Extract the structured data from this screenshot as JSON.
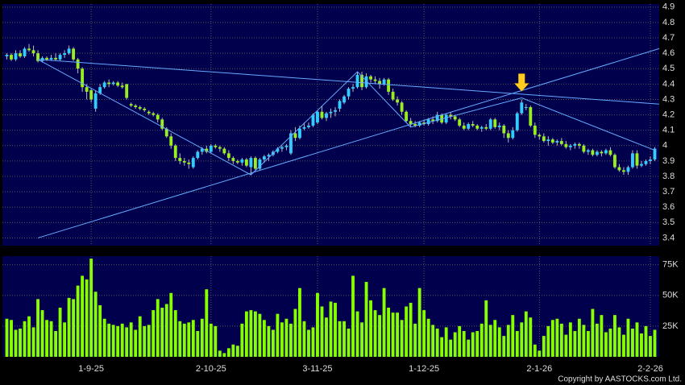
{
  "chart_data": {
    "type": "candlestick",
    "up_color": "#33ccff",
    "down_color": "#99ee22",
    "volume_color": "#88ff00",
    "background": "#00004d",
    "trendline_color": "#66aaff",
    "grid": true,
    "xlim": [
      -1,
      147
    ],
    "xticks": [
      {
        "value": 19,
        "label": "1-9-25"
      },
      {
        "value": 46,
        "label": "2-10-25"
      },
      {
        "value": 70,
        "label": "3-11-25"
      },
      {
        "value": 94,
        "label": "1-12-25"
      },
      {
        "value": 120,
        "label": "2-1-26"
      },
      {
        "value": 145,
        "label": "2-2-26"
      }
    ],
    "ylim": [
      3.35,
      4.92
    ],
    "yticks": [
      3.4,
      3.5,
      3.6,
      3.7,
      3.8,
      3.9,
      4,
      4.1,
      4.2,
      4.3,
      4.4,
      4.5,
      4.6,
      4.7,
      4.8,
      4.9
    ],
    "y2lim": [
      0,
      82000
    ],
    "y2ticks": [
      {
        "value": 25000,
        "label": "25K"
      },
      {
        "value": 50000,
        "label": "50K"
      },
      {
        "value": 75000,
        "label": "75K"
      }
    ],
    "trendlines": [
      {
        "x": [
          7,
          55,
          79,
          91,
          116,
          146
        ],
        "y": [
          4.56,
          3.81,
          4.48,
          4.12,
          4.31,
          3.97
        ]
      },
      {
        "x": [
          7,
          147
        ],
        "y": [
          4.56,
          4.27
        ]
      },
      {
        "x": [
          7,
          147
        ],
        "y": [
          3.4,
          4.63
        ]
      }
    ],
    "candles": [
      [
        4.58,
        4.6,
        4.56,
        4.59,
        31000
      ],
      [
        4.59,
        4.6,
        4.55,
        4.56,
        30000
      ],
      [
        4.56,
        4.62,
        4.55,
        4.6,
        22000
      ],
      [
        4.6,
        4.62,
        4.57,
        4.58,
        23000
      ],
      [
        4.58,
        4.64,
        4.57,
        4.63,
        29000
      ],
      [
        4.63,
        4.66,
        4.61,
        4.62,
        33000
      ],
      [
        4.62,
        4.65,
        4.58,
        4.6,
        24000
      ],
      [
        4.6,
        4.62,
        4.54,
        4.55,
        47000
      ],
      [
        4.55,
        4.58,
        4.54,
        4.57,
        38000
      ],
      [
        4.57,
        4.58,
        4.55,
        4.56,
        30000
      ],
      [
        4.56,
        4.59,
        4.55,
        4.57,
        29000
      ],
      [
        4.57,
        4.6,
        4.55,
        4.56,
        21000
      ],
      [
        4.56,
        4.6,
        4.55,
        4.59,
        40000
      ],
      [
        4.59,
        4.62,
        4.57,
        4.6,
        28000
      ],
      [
        4.6,
        4.65,
        4.59,
        4.63,
        48000
      ],
      [
        4.63,
        4.64,
        4.55,
        4.56,
        47000
      ],
      [
        4.56,
        4.57,
        4.47,
        4.5,
        58000
      ],
      [
        4.5,
        4.51,
        4.35,
        4.38,
        66000
      ],
      [
        4.38,
        4.4,
        4.3,
        4.35,
        63000
      ],
      [
        4.36,
        4.37,
        4.28,
        4.3,
        80000
      ],
      [
        4.24,
        4.36,
        4.22,
        4.34,
        53000
      ],
      [
        4.34,
        4.4,
        4.33,
        4.38,
        42000
      ],
      [
        4.38,
        4.42,
        4.37,
        4.41,
        31000
      ],
      [
        4.41,
        4.43,
        4.38,
        4.4,
        27000
      ],
      [
        4.4,
        4.42,
        4.39,
        4.41,
        26000
      ],
      [
        4.41,
        4.42,
        4.38,
        4.39,
        25000
      ],
      [
        4.39,
        4.41,
        4.37,
        4.38,
        27000
      ],
      [
        4.4,
        4.4,
        4.3,
        4.31,
        24000
      ],
      [
        4.27,
        4.28,
        4.25,
        4.26,
        28000
      ],
      [
        4.26,
        4.27,
        4.24,
        4.25,
        22000
      ],
      [
        4.25,
        4.26,
        4.23,
        4.24,
        33000
      ],
      [
        4.24,
        4.25,
        4.22,
        4.23,
        25000
      ],
      [
        4.22,
        4.23,
        4.2,
        4.21,
        26000
      ],
      [
        4.21,
        4.22,
        4.19,
        4.2,
        38000
      ],
      [
        4.2,
        4.21,
        4.15,
        4.17,
        47000
      ],
      [
        4.17,
        4.18,
        4.1,
        4.11,
        40000
      ],
      [
        4.11,
        4.12,
        4.05,
        4.06,
        43000
      ],
      [
        4.06,
        4.08,
        3.98,
        4.0,
        52000
      ],
      [
        4.0,
        4.01,
        3.9,
        3.92,
        38000
      ],
      [
        3.92,
        3.95,
        3.88,
        3.9,
        29000
      ],
      [
        3.9,
        3.92,
        3.87,
        3.89,
        27000
      ],
      [
        3.89,
        3.91,
        3.85,
        3.88,
        28000
      ],
      [
        3.86,
        3.93,
        3.85,
        3.92,
        30000
      ],
      [
        3.92,
        3.97,
        3.91,
        3.96,
        21000
      ],
      [
        3.96,
        3.99,
        3.94,
        3.98,
        31000
      ],
      [
        3.98,
        4.0,
        3.95,
        3.96,
        55000
      ],
      [
        3.96,
        4.01,
        3.95,
        4.0,
        27000
      ],
      [
        4.0,
        4.01,
        3.98,
        3.99,
        25000
      ],
      [
        3.99,
        4.0,
        3.96,
        3.98,
        5000
      ],
      [
        3.98,
        3.99,
        3.94,
        3.95,
        3000
      ],
      [
        3.95,
        3.97,
        3.9,
        3.92,
        7000
      ],
      [
        3.92,
        3.93,
        3.88,
        3.9,
        10000
      ],
      [
        3.9,
        3.91,
        3.88,
        3.89,
        9000
      ],
      [
        3.89,
        3.92,
        3.87,
        3.91,
        27000
      ],
      [
        3.91,
        3.92,
        3.86,
        3.87,
        37000
      ],
      [
        3.86,
        3.93,
        3.81,
        3.92,
        38000
      ],
      [
        3.92,
        3.93,
        3.84,
        3.85,
        37000
      ],
      [
        3.85,
        3.92,
        3.84,
        3.91,
        35000
      ],
      [
        3.91,
        3.94,
        3.89,
        3.93,
        30000
      ],
      [
        3.93,
        3.95,
        3.9,
        3.94,
        25000
      ],
      [
        3.94,
        3.97,
        3.93,
        3.96,
        22000
      ],
      [
        3.96,
        3.99,
        3.95,
        3.98,
        35000
      ],
      [
        3.98,
        4.0,
        3.96,
        3.99,
        28000
      ],
      [
        3.99,
        4.01,
        3.97,
        4.0,
        31000
      ],
      [
        3.95,
        4.1,
        3.94,
        4.08,
        27000
      ],
      [
        4.08,
        4.12,
        4.03,
        4.05,
        39000
      ],
      [
        4.05,
        4.13,
        4.04,
        4.11,
        56000
      ],
      [
        4.11,
        4.15,
        4.1,
        4.12,
        29000
      ],
      [
        4.12,
        4.15,
        4.11,
        4.13,
        22000
      ],
      [
        4.13,
        4.21,
        4.12,
        4.2,
        24000
      ],
      [
        4.15,
        4.23,
        4.14,
        4.22,
        52000
      ],
      [
        4.22,
        4.26,
        4.17,
        4.18,
        41000
      ],
      [
        4.18,
        4.22,
        4.16,
        4.21,
        32000
      ],
      [
        4.21,
        4.24,
        4.18,
        4.22,
        45000
      ],
      [
        4.22,
        4.25,
        4.19,
        4.23,
        44000
      ],
      [
        4.24,
        4.3,
        4.22,
        4.29,
        29000
      ],
      [
        4.28,
        4.33,
        4.27,
        4.32,
        29000
      ],
      [
        4.32,
        4.38,
        4.3,
        4.37,
        23000
      ],
      [
        4.37,
        4.4,
        4.35,
        4.38,
        66000
      ],
      [
        4.38,
        4.48,
        4.37,
        4.46,
        37000
      ],
      [
        4.46,
        4.48,
        4.36,
        4.38,
        28000
      ],
      [
        4.38,
        4.47,
        4.37,
        4.45,
        61000
      ],
      [
        4.45,
        4.46,
        4.41,
        4.43,
        46000
      ],
      [
        4.43,
        4.45,
        4.4,
        4.42,
        38000
      ],
      [
        4.42,
        4.44,
        4.37,
        4.4,
        34000
      ],
      [
        4.4,
        4.44,
        4.39,
        4.43,
        56000
      ],
      [
        4.43,
        4.44,
        4.33,
        4.35,
        40000
      ],
      [
        4.35,
        4.37,
        4.29,
        4.3,
        36000
      ],
      [
        4.3,
        4.32,
        4.26,
        4.28,
        36000
      ],
      [
        4.28,
        4.29,
        4.2,
        4.22,
        30000
      ],
      [
        4.22,
        4.23,
        4.15,
        4.16,
        41000
      ],
      [
        4.16,
        4.18,
        4.12,
        4.14,
        44000
      ],
      [
        4.14,
        4.16,
        4.12,
        4.13,
        27000
      ],
      [
        4.13,
        4.16,
        4.12,
        4.15,
        56000
      ],
      [
        4.15,
        4.17,
        4.13,
        4.14,
        38000
      ],
      [
        4.14,
        4.18,
        4.13,
        4.17,
        31000
      ],
      [
        4.17,
        4.19,
        4.14,
        4.16,
        26000
      ],
      [
        4.16,
        4.22,
        4.15,
        4.2,
        23000
      ],
      [
        4.2,
        4.21,
        4.14,
        4.15,
        16000
      ],
      [
        4.15,
        4.21,
        4.14,
        4.2,
        24000
      ],
      [
        4.2,
        4.22,
        4.17,
        4.19,
        14000
      ],
      [
        4.19,
        4.2,
        4.16,
        4.17,
        20000
      ],
      [
        4.17,
        4.18,
        4.12,
        4.13,
        25000
      ],
      [
        4.13,
        4.15,
        4.1,
        4.11,
        21000
      ],
      [
        4.11,
        4.15,
        4.1,
        4.14,
        14000
      ],
      [
        4.14,
        4.16,
        4.12,
        4.13,
        20000
      ],
      [
        4.13,
        4.14,
        4.1,
        4.11,
        21000
      ],
      [
        4.11,
        4.13,
        4.09,
        4.12,
        27000
      ],
      [
        4.12,
        4.14,
        4.1,
        4.11,
        46000
      ],
      [
        4.11,
        4.18,
        4.1,
        4.17,
        26000
      ],
      [
        4.17,
        4.18,
        4.11,
        4.12,
        30000
      ],
      [
        4.12,
        4.15,
        4.1,
        4.13,
        24000
      ],
      [
        4.13,
        4.14,
        4.05,
        4.08,
        17000
      ],
      [
        4.08,
        4.1,
        4.02,
        4.05,
        26000
      ],
      [
        4.05,
        4.12,
        4.04,
        4.1,
        34000
      ],
      [
        4.1,
        4.22,
        4.09,
        4.21,
        21000
      ],
      [
        4.21,
        4.3,
        4.2,
        4.28,
        28000
      ],
      [
        4.25,
        4.27,
        4.23,
        4.25,
        37000
      ],
      [
        4.25,
        4.26,
        4.12,
        4.13,
        32000
      ],
      [
        4.13,
        4.15,
        4.05,
        4.07,
        10000
      ],
      [
        4.07,
        4.08,
        4.04,
        4.06,
        5000
      ],
      [
        4.06,
        4.08,
        4.02,
        4.03,
        17000
      ],
      [
        4.03,
        4.06,
        4.0,
        4.04,
        25000
      ],
      [
        4.04,
        4.05,
        4.01,
        4.02,
        30000
      ],
      [
        4.02,
        4.04,
        4.0,
        4.03,
        31000
      ],
      [
        4.03,
        4.05,
        4.0,
        4.01,
        27000
      ],
      [
        4.01,
        4.03,
        3.98,
        3.99,
        18000
      ],
      [
        3.99,
        4.01,
        3.97,
        4.0,
        28000
      ],
      [
        4.0,
        4.02,
        3.98,
        4.01,
        21000
      ],
      [
        4.01,
        4.02,
        3.98,
        4.0,
        31000
      ],
      [
        4.0,
        4.01,
        3.95,
        3.96,
        26000
      ],
      [
        3.96,
        3.98,
        3.94,
        3.97,
        21000
      ],
      [
        3.97,
        3.98,
        3.93,
        3.94,
        39000
      ],
      [
        3.94,
        3.97,
        3.93,
        3.96,
        27000
      ],
      [
        3.96,
        3.97,
        3.93,
        3.95,
        34000
      ],
      [
        3.95,
        3.98,
        3.94,
        3.97,
        20000
      ],
      [
        3.97,
        3.99,
        3.93,
        3.94,
        23000
      ],
      [
        3.94,
        3.95,
        3.85,
        3.86,
        34000
      ],
      [
        3.86,
        3.88,
        3.83,
        3.84,
        24000
      ],
      [
        3.84,
        3.86,
        3.81,
        3.83,
        18000
      ],
      [
        3.83,
        3.87,
        3.81,
        3.86,
        31000
      ],
      [
        3.86,
        3.97,
        3.85,
        3.95,
        23000
      ],
      [
        3.95,
        3.97,
        3.85,
        3.87,
        28000
      ],
      [
        3.87,
        3.9,
        3.86,
        3.88,
        19000
      ],
      [
        3.88,
        3.91,
        3.87,
        3.9,
        25000
      ],
      [
        3.9,
        3.93,
        3.88,
        3.91,
        17000
      ],
      [
        3.91,
        3.99,
        3.9,
        3.98,
        22000
      ]
    ],
    "copyright": "Copyright by AASTOCKS.com Ltd."
  }
}
